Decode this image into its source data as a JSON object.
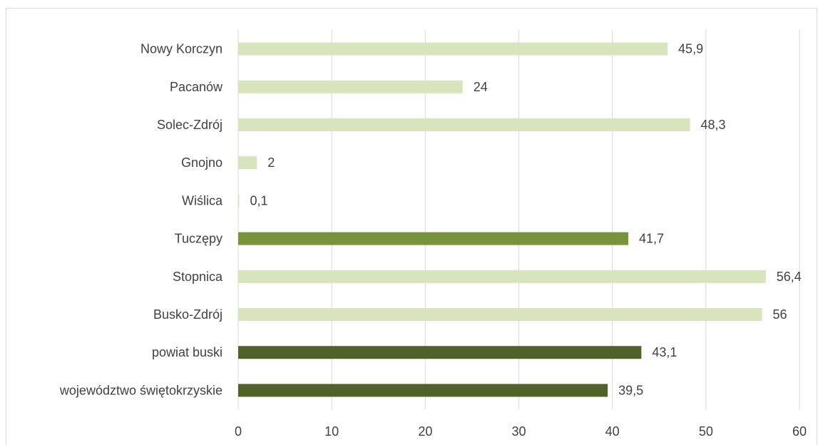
{
  "chart_data": {
    "type": "bar",
    "orientation": "horizontal",
    "categories": [
      "Nowy Korczyn",
      "Pacanów",
      "Solec-Zdrój",
      "Gnojno",
      "Wiślica",
      "Tuczępy",
      "Stopnica",
      "Busko-Zdrój",
      "powiat buski",
      "województwo świętokrzyskie"
    ],
    "values": [
      45.9,
      24,
      48.3,
      2,
      0.1,
      41.7,
      56.4,
      56,
      43.1,
      39.5
    ],
    "data_labels": [
      "45,9",
      "24",
      "48,3",
      "2",
      "0,1",
      "41,7",
      "56,4",
      "56",
      "43,1",
      "39,5"
    ],
    "bar_colors": [
      "#d8e4bc",
      "#d8e4bc",
      "#d8e4bc",
      "#d8e4bc",
      "#d8e4bc",
      "#77933c",
      "#d8e4bc",
      "#d8e4bc",
      "#4f6228",
      "#4f6228"
    ],
    "xlim": [
      0,
      60
    ],
    "x_ticks": [
      0,
      10,
      20,
      30,
      40,
      50,
      60
    ],
    "title": "",
    "xlabel": "",
    "ylabel": "",
    "grid": "vertical",
    "legend": "none",
    "colors": {
      "gridline": "#d9d9d9",
      "text": "#404040"
    }
  }
}
